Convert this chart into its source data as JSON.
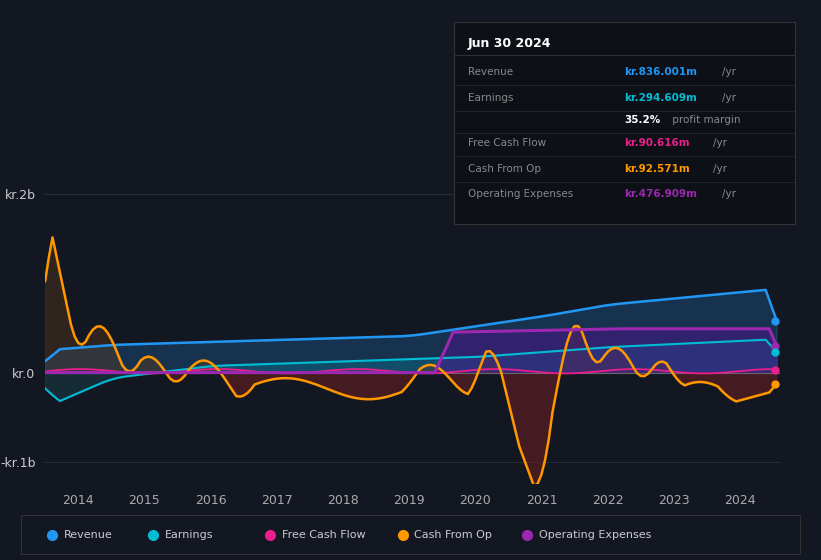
{
  "bg_color": "#131722",
  "plot_bg_color": "#131722",
  "grid_color": "#2a2e39",
  "colors": {
    "revenue": "#2196f3",
    "earnings": "#00bcd4",
    "free_cash_flow": "#e91e8c",
    "cash_from_op": "#ff9800",
    "operating_expenses": "#9c27b0"
  },
  "legend": [
    {
      "label": "Revenue",
      "color": "#2196f3"
    },
    {
      "label": "Earnings",
      "color": "#00bcd4"
    },
    {
      "label": "Free Cash Flow",
      "color": "#e91e8c"
    },
    {
      "label": "Cash From Op",
      "color": "#ff9800"
    },
    {
      "label": "Operating Expenses",
      "color": "#9c27b0"
    }
  ],
  "yticks": [
    -1000000000.0,
    0,
    2000000000.0
  ],
  "ytick_labels": [
    "-kr.1b",
    "kr.0",
    "kr.2b"
  ],
  "xmin": 2013.5,
  "xmax": 2024.6,
  "ymin": -1250000000.0,
  "ymax": 2350000000.0,
  "xtick_years": [
    2014,
    2015,
    2016,
    2017,
    2018,
    2019,
    2020,
    2021,
    2022,
    2023,
    2024
  ]
}
